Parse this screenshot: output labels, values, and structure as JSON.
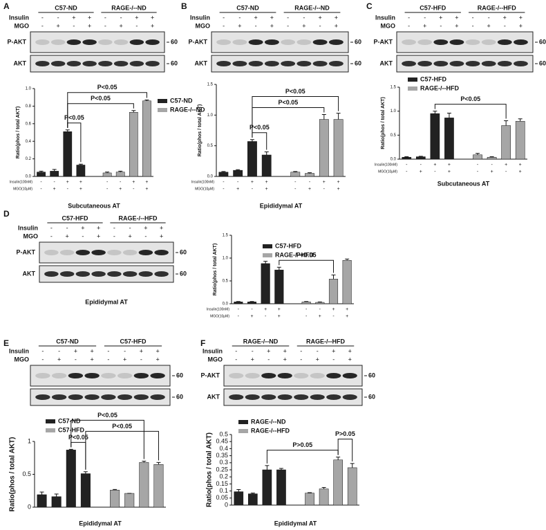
{
  "chart_data": [
    {
      "type": "bar",
      "ylabel": "Ratio(phos / total AKT)",
      "xlabel": "Subcutaneous AT",
      "legend": "right",
      "ylim": [
        0,
        1.0
      ],
      "yticks": [
        {
          "value": 0,
          "label": "0.0"
        },
        0.2,
        0.4,
        0.6,
        0.8,
        {
          "value": 1,
          "label": "1.0"
        }
      ],
      "conditions": [
        {
          "label": "Insulin(100nM)",
          "signs": [
            "-",
            "-",
            "+",
            "+",
            "-",
            "-",
            "+",
            "+"
          ]
        },
        {
          "label": "MGO(10μM)",
          "signs": [
            "-",
            "+",
            "-",
            "+",
            "-",
            "+",
            "-",
            "+"
          ]
        }
      ],
      "series": [
        {
          "name": "C57-ND",
          "color": "#222222",
          "values": [
            0.05,
            0.06,
            0.51,
            0.13,
            null,
            null,
            null,
            null
          ],
          "errors": [
            0.01,
            0.02,
            0.02,
            0.01,
            null,
            null,
            null,
            null
          ]
        },
        {
          "name": "RAGE-/--ND",
          "color": "#a6a6a6",
          "values": [
            null,
            null,
            null,
            null,
            0.04,
            0.05,
            0.73,
            0.86
          ],
          "errors": [
            null,
            null,
            null,
            null,
            0.01,
            0.01,
            0.02,
            0.01
          ]
        }
      ],
      "annotations": [
        {
          "text": "P<0.05",
          "between": [
            2,
            3
          ]
        },
        {
          "text": "P<0.05",
          "between": [
            2,
            6
          ]
        },
        {
          "text": "P<0.05",
          "between": [
            2,
            7
          ]
        }
      ]
    },
    {
      "type": "bar",
      "ylabel": "Ratio(phos / total AKT)",
      "xlabel": "Epididymal AT",
      "ylim": [
        0,
        1.5
      ],
      "yticks": [
        {
          "value": 0,
          "label": "0.0"
        },
        0.5,
        {
          "value": 1,
          "label": "1.0"
        },
        1.5
      ],
      "conditions": [
        {
          "label": "Insulin(100nM)",
          "signs": [
            "-",
            "-",
            "+",
            "+",
            "-",
            "-",
            "+",
            "+"
          ]
        },
        {
          "label": "MGO(10μM)",
          "signs": [
            "-",
            "+",
            "-",
            "+",
            "-",
            "+",
            "-",
            "+"
          ]
        }
      ],
      "series": [
        {
          "color": "#222222",
          "values": [
            0.07,
            0.1,
            0.57,
            0.35,
            null,
            null,
            null,
            null
          ],
          "errors": [
            0.01,
            0.01,
            0.03,
            0.05,
            null,
            null,
            null,
            null
          ]
        },
        {
          "color": "#a6a6a6",
          "values": [
            null,
            null,
            null,
            null,
            0.07,
            0.05,
            0.93,
            0.93
          ],
          "errors": [
            null,
            null,
            null,
            null,
            0.01,
            0.01,
            0.08,
            0.1
          ]
        }
      ],
      "annotations": [
        {
          "text": "P<0.05",
          "between": [
            2,
            3
          ]
        },
        {
          "text": "P<0.05",
          "between": [
            2,
            6
          ]
        },
        {
          "text": "P<0.05",
          "between": [
            2,
            7
          ]
        }
      ]
    },
    {
      "type": "bar",
      "ylabel": "Ratio(phos / total AKT)",
      "xlabel": "Subcutaneous AT",
      "legend": "top",
      "ylim": [
        0,
        1.5
      ],
      "yticks": [
        {
          "value": 0,
          "label": "0.0"
        },
        0.5,
        {
          "value": 1,
          "label": "1.0"
        },
        1.5
      ],
      "conditions": [
        {
          "label": "Insulin(100nM)",
          "signs": [
            "-",
            "-",
            "+",
            "+",
            "-",
            "-",
            "+",
            "+"
          ]
        },
        {
          "label": "MGO(10μM)",
          "signs": [
            "-",
            "+",
            "-",
            "+",
            "-",
            "+",
            "-",
            "+"
          ]
        }
      ],
      "series": [
        {
          "name": "C57-HFD",
          "color": "#222222",
          "values": [
            0.04,
            0.05,
            0.95,
            0.86,
            null,
            null,
            null,
            null
          ],
          "errors": [
            0.01,
            0.01,
            0.05,
            0.1,
            null,
            null,
            null,
            null
          ]
        },
        {
          "name": "RAGE-/--HFD",
          "color": "#a6a6a6",
          "values": [
            null,
            null,
            null,
            null,
            0.09,
            0.04,
            0.7,
            0.79
          ],
          "errors": [
            null,
            null,
            null,
            null,
            0.03,
            0.01,
            0.1,
            0.05
          ]
        }
      ],
      "annotations": [
        {
          "text": "P<0.05",
          "between": [
            2,
            6
          ]
        }
      ]
    },
    {
      "type": "bar",
      "ylabel": "Ratio(phos / total AKT)",
      "legend": "top",
      "ylim": [
        0,
        1.5
      ],
      "yticks": [
        {
          "value": 0,
          "label": "0.0"
        },
        0.5,
        {
          "value": 1,
          "label": "1.0"
        },
        1.5
      ],
      "conditions": [
        {
          "label": "Insulin(100nM)",
          "signs": [
            "-",
            "-",
            "+",
            "+",
            "-",
            "-",
            "+",
            "+"
          ]
        },
        {
          "label": "MGO(10μM)",
          "signs": [
            "-",
            "+",
            "-",
            "+",
            "-",
            "+",
            "-",
            "+"
          ]
        }
      ],
      "series": [
        {
          "name": "C57-HFD",
          "color": "#222222",
          "values": [
            0.04,
            0.04,
            0.88,
            0.74,
            null,
            null,
            null,
            null
          ],
          "errors": [
            0.01,
            0.01,
            0.05,
            0.06,
            null,
            null,
            null,
            null
          ]
        },
        {
          "name": "RAGE-/--HFD",
          "color": "#a6a6a6",
          "values": [
            null,
            null,
            null,
            null,
            0.04,
            0.03,
            0.54,
            0.95
          ],
          "errors": [
            null,
            null,
            null,
            null,
            0.01,
            0.01,
            0.09,
            0.03
          ]
        }
      ],
      "annotations": [
        {
          "text": "P<0.05",
          "between": [
            3,
            6
          ]
        }
      ]
    },
    {
      "type": "bar",
      "ylabel": "Ratio(phos / total AKT)",
      "xlabel": "Epididymal AT",
      "legend": "top",
      "ylim": [
        0,
        1
      ],
      "yticks": [
        0,
        0.5,
        1
      ],
      "series": [
        {
          "name": "C57-ND",
          "color": "#222222",
          "values": [
            0.19,
            0.16,
            0.87,
            0.51,
            null,
            null,
            null,
            null
          ],
          "errors": [
            0.04,
            0.04,
            0.01,
            0.03,
            null,
            null,
            null,
            null
          ]
        },
        {
          "name": "C57-HFD",
          "color": "#a6a6a6",
          "values": [
            null,
            null,
            null,
            null,
            0.26,
            0.21,
            0.68,
            0.65
          ],
          "errors": [
            null,
            null,
            null,
            null,
            0.01,
            0,
            0.02,
            0.03
          ]
        }
      ],
      "annotations": [
        {
          "text": "P<0.05",
          "between": [
            2,
            3
          ]
        },
        {
          "text": "P<0.05",
          "between": [
            3,
            7
          ]
        },
        {
          "text": "P<0.05",
          "between": [
            2,
            6
          ]
        }
      ]
    },
    {
      "type": "bar",
      "ylabel": "Ratio(phos / total AKT)",
      "xlabel": "Epididymal AT",
      "legend": "top",
      "ylim": [
        0,
        0.5
      ],
      "yticks": [
        0,
        0.05,
        0.1,
        0.15,
        0.2,
        0.25,
        0.3,
        0.35,
        0.4,
        0.45,
        0.5
      ],
      "series": [
        {
          "name": "RAGE-/--ND",
          "color": "#222222",
          "values": [
            0.095,
            0.08,
            0.25,
            0.25,
            null,
            null,
            null,
            null
          ],
          "errors": [
            0.015,
            0.005,
            0.03,
            0.01,
            null,
            null,
            null,
            null
          ]
        },
        {
          "name": "RAGE-/--HFD",
          "color": "#a6a6a6",
          "values": [
            null,
            null,
            null,
            null,
            0.085,
            0.115,
            0.32,
            0.265
          ],
          "errors": [
            null,
            null,
            null,
            null,
            0.003,
            0.01,
            0.02,
            0.03
          ]
        }
      ],
      "annotations": [
        {
          "text": "P>0.05",
          "between": [
            2,
            6
          ]
        },
        {
          "text": "P>0.05",
          "between": [
            6,
            7
          ]
        }
      ]
    }
  ],
  "blots": [
    {
      "letter": "A",
      "groups": [
        "C57-ND",
        "RAGE-/--ND"
      ],
      "rows": [
        {
          "label": "Insulin",
          "signs": [
            "-",
            "-",
            "+",
            "+",
            "-",
            "-",
            "+",
            "+"
          ]
        },
        {
          "label": "MGO",
          "signs": [
            "-",
            "+",
            "-",
            "+",
            "-",
            "+",
            "-",
            "+"
          ]
        }
      ],
      "bands": [
        "P-AKT",
        "AKT"
      ],
      "markers": [
        60,
        60
      ]
    },
    {
      "letter": "B",
      "groups": [
        "C57-ND",
        "RAGE-/--ND"
      ],
      "rows": [
        {
          "label": "Insulin",
          "signs": [
            "-",
            "-",
            "+",
            "+",
            "-",
            "-",
            "+",
            "+"
          ]
        },
        {
          "label": "MGO",
          "signs": [
            "-",
            "+",
            "-",
            "+",
            "-",
            "+",
            "-",
            "+"
          ]
        }
      ],
      "bands": [
        "P-AKT",
        "AKT"
      ],
      "markers": [
        60,
        60
      ]
    },
    {
      "letter": "C",
      "groups": [
        "C57-HFD",
        "RAGE-/--HFD"
      ],
      "rows": [
        {
          "label": "Insulin",
          "signs": [
            "-",
            "-",
            "+",
            "+",
            "-",
            "-",
            "+",
            "+"
          ]
        },
        {
          "label": "MGO",
          "signs": [
            "-",
            "+",
            "-",
            "+",
            "-",
            "+",
            "-",
            "+"
          ]
        }
      ],
      "bands": [
        "P-AKT",
        "AKT"
      ],
      "markers": [
        60,
        60
      ]
    },
    {
      "letter": "D",
      "groups": [
        "C57-HFD",
        "RAGE-/--HFD"
      ],
      "rows": [
        {
          "label": "Insulin",
          "signs": [
            "-",
            "-",
            "+",
            "+",
            "-",
            "-",
            "+",
            "+"
          ]
        },
        {
          "label": "MGO",
          "signs": [
            "-",
            "+",
            "-",
            "+",
            "-",
            "+",
            "-",
            "+"
          ]
        }
      ],
      "bands": [
        "P-AKT",
        "AKT"
      ],
      "markers": [
        60,
        60
      ],
      "caption": "Epididymal AT"
    },
    {
      "letter": "E",
      "groups": [
        "C57-ND",
        "C57-HFD"
      ],
      "rows": [
        {
          "label": "Insulin",
          "signs": [
            "-",
            "-",
            "+",
            "+",
            "-",
            "-",
            "+",
            "+"
          ]
        },
        {
          "label": "MGO",
          "signs": [
            "-",
            "+",
            "-",
            "+",
            "-",
            "+",
            "-",
            "+"
          ]
        }
      ],
      "markers": [
        60,
        60
      ]
    },
    {
      "letter": "F",
      "groups": [
        "RAGE-/--ND",
        "RAGE-/--HFD"
      ],
      "rows": [
        {
          "label": "Insulin",
          "signs": [
            "-",
            "-",
            "+",
            "+",
            "-",
            "-",
            "+",
            "+"
          ]
        },
        {
          "label": "MGO",
          "signs": [
            "-",
            "+",
            "-",
            "+",
            "-",
            "+",
            "-",
            "+"
          ]
        }
      ],
      "bands": [
        "P-AKT",
        "AKT"
      ],
      "markers": [
        60,
        60
      ]
    }
  ]
}
